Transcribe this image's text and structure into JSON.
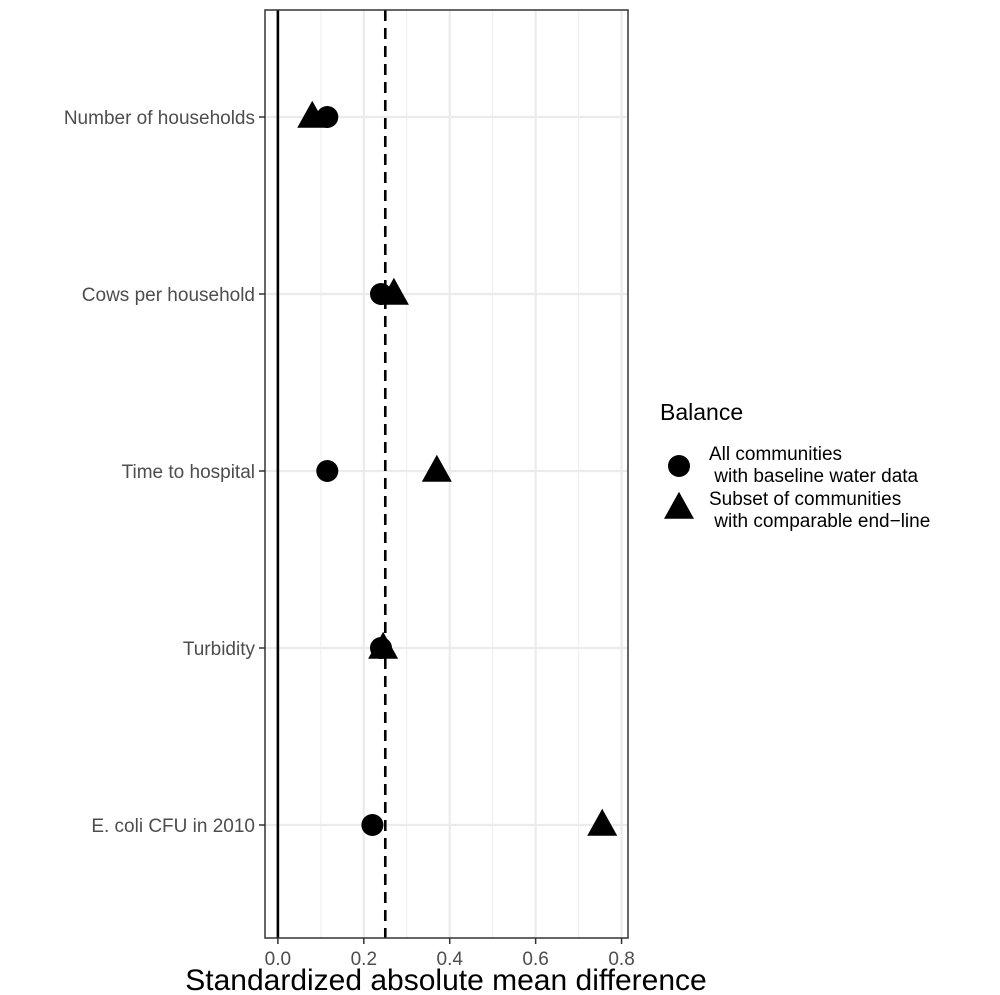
{
  "chart_data": {
    "type": "scatter",
    "title": "",
    "xlabel": "Standardized absolute mean difference",
    "ylabel": "",
    "xlim": [
      -0.03,
      0.815
    ],
    "xticks": [
      0.0,
      0.2,
      0.4,
      0.6,
      0.8
    ],
    "xtick_labels": [
      "0.0",
      "0.2",
      "0.4",
      "0.6",
      "0.8"
    ],
    "grid": true,
    "categories": [
      "Number of households",
      "Cows per household",
      "Time to hospital",
      "Turbidity",
      "E. coli CFU in 2010"
    ],
    "reference_lines": [
      {
        "x": 0.0,
        "style": "solid"
      },
      {
        "x": 0.25,
        "style": "dashed"
      }
    ],
    "legend": {
      "title": "Balance",
      "placement": "right"
    },
    "series": [
      {
        "name": "All communities\n with baseline water data",
        "marker": "circle",
        "color": "#000000",
        "values": [
          0.115,
          0.24,
          0.115,
          0.24,
          0.22
        ]
      },
      {
        "name": "Subset of communities\n with comparable end−line",
        "marker": "triangle",
        "color": "#000000",
        "values": [
          0.08,
          0.27,
          0.37,
          0.245,
          0.755
        ]
      }
    ]
  }
}
